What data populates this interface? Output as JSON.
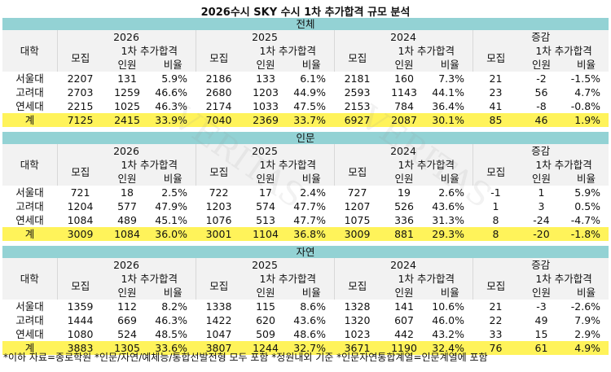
{
  "title": "2026수시 SKY 수시 1차 추가합격 규모 분석",
  "headers": {
    "university": "대학",
    "years": [
      "2026",
      "2025",
      "2024",
      "증감"
    ],
    "recruit": "모집",
    "additional": "1차 추가합격",
    "count": "인원",
    "ratio": "비율"
  },
  "sections": [
    {
      "name": "전체",
      "rows": [
        {
          "univ": "서울대",
          "vals": [
            "2207",
            "131",
            "5.9%",
            "2186",
            "133",
            "6.1%",
            "2181",
            "160",
            "7.3%",
            "21",
            "-2",
            "-1.5%"
          ]
        },
        {
          "univ": "고려대",
          "vals": [
            "2703",
            "1259",
            "46.6%",
            "2680",
            "1203",
            "44.9%",
            "2593",
            "1143",
            "44.1%",
            "23",
            "56",
            "4.7%"
          ]
        },
        {
          "univ": "연세대",
          "vals": [
            "2215",
            "1025",
            "46.3%",
            "2174",
            "1033",
            "47.5%",
            "2153",
            "784",
            "36.4%",
            "41",
            "-8",
            "-0.8%"
          ]
        }
      ],
      "total": {
        "univ": "계",
        "vals": [
          "7125",
          "2415",
          "33.9%",
          "7040",
          "2369",
          "33.7%",
          "6927",
          "2087",
          "30.1%",
          "85",
          "46",
          "1.9%"
        ]
      }
    },
    {
      "name": "인문",
      "rows": [
        {
          "univ": "서울대",
          "vals": [
            "721",
            "18",
            "2.5%",
            "722",
            "17",
            "2.4%",
            "727",
            "19",
            "2.6%",
            "-1",
            "1",
            "5.9%"
          ]
        },
        {
          "univ": "고려대",
          "vals": [
            "1204",
            "577",
            "47.9%",
            "1203",
            "574",
            "47.7%",
            "1207",
            "526",
            "43.6%",
            "1",
            "3",
            "0.5%"
          ]
        },
        {
          "univ": "연세대",
          "vals": [
            "1084",
            "489",
            "45.1%",
            "1076",
            "513",
            "47.7%",
            "1075",
            "336",
            "31.3%",
            "8",
            "-24",
            "-4.7%"
          ]
        }
      ],
      "total": {
        "univ": "계",
        "vals": [
          "3009",
          "1084",
          "36.0%",
          "3001",
          "1104",
          "36.8%",
          "3009",
          "881",
          "29.3%",
          "8",
          "-20",
          "-1.8%"
        ]
      }
    },
    {
      "name": "자연",
      "rows": [
        {
          "univ": "서울대",
          "vals": [
            "1359",
            "112",
            "8.2%",
            "1338",
            "115",
            "8.6%",
            "1328",
            "141",
            "10.6%",
            "21",
            "-3",
            "-2.6%"
          ]
        },
        {
          "univ": "고려대",
          "vals": [
            "1444",
            "669",
            "46.3%",
            "1422",
            "620",
            "43.6%",
            "1320",
            "607",
            "46.0%",
            "22",
            "49",
            "7.9%"
          ]
        },
        {
          "univ": "연세대",
          "vals": [
            "1080",
            "524",
            "48.5%",
            "1047",
            "509",
            "48.6%",
            "1023",
            "442",
            "43.2%",
            "33",
            "15",
            "2.9%"
          ]
        }
      ],
      "total": {
        "univ": "계",
        "vals": [
          "3883",
          "1305",
          "33.6%",
          "3807",
          "1244",
          "32.7%",
          "3671",
          "1190",
          "32.4%",
          "76",
          "61",
          "4.9%"
        ]
      }
    }
  ],
  "footer": "*이하 자료=종로학원 *인문/자연/예체능/통합선발전형 모두 포함 *정원내외 기준 *인문자연통합계열=인문계열에 포함",
  "watermark": "VERITAS",
  "colors": {
    "section_header": "#93d2d4",
    "total_row": "#fff35a",
    "header_bg": "#f2f2f2"
  }
}
